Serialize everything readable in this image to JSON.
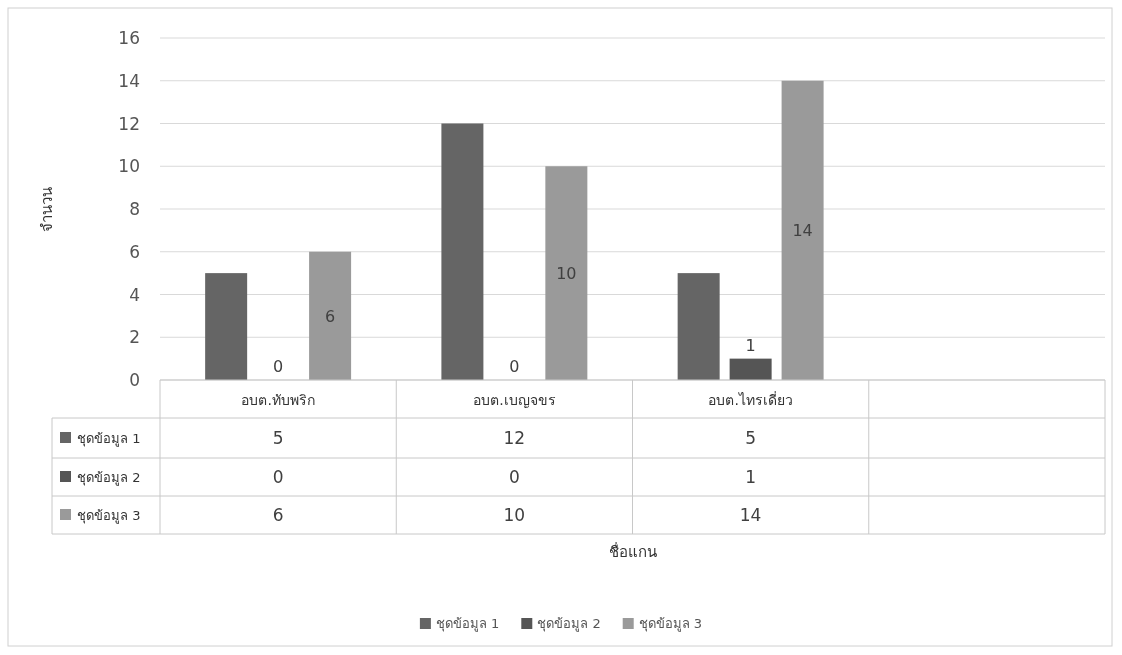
{
  "chart_data": {
    "type": "bar",
    "ylabel": "จำนวน",
    "categories": [
      "อบต.ทับพริก",
      "อบต.เบญจขร",
      "อบต.ไทรเดี่ยว",
      null
    ],
    "series": [
      {
        "name": "ชุดข้อมูล 1",
        "color": "#656565",
        "values": [
          5,
          12,
          5,
          null
        ]
      },
      {
        "name": "ชุดข้อมูล 2",
        "color": "#555555",
        "values": [
          0,
          0,
          1,
          null
        ]
      },
      {
        "name": "ชุดข้อมูล 3",
        "color": "#9a9a9a",
        "values": [
          6,
          10,
          14,
          null
        ]
      }
    ],
    "annotations": [
      "ชื่อแกน",
      {
        "text": "0",
        "x": "อบต.ทับพริก",
        "y": 0
      },
      "6",
      "10",
      "14",
      {
        "text": "0",
        "x": "อบต.เบญจขร",
        "y": 0
      },
      {
        "text": "1",
        "x": "อบต.ไทรเดี่ยว",
        "y": 1
      }
    ],
    "ylim": [
      0,
      16
    ],
    "yticks": [
      0,
      2,
      4,
      6,
      8,
      10,
      12,
      14,
      16
    ],
    "grid": "y",
    "legend": "bottom",
    "data_labels": true
  }
}
